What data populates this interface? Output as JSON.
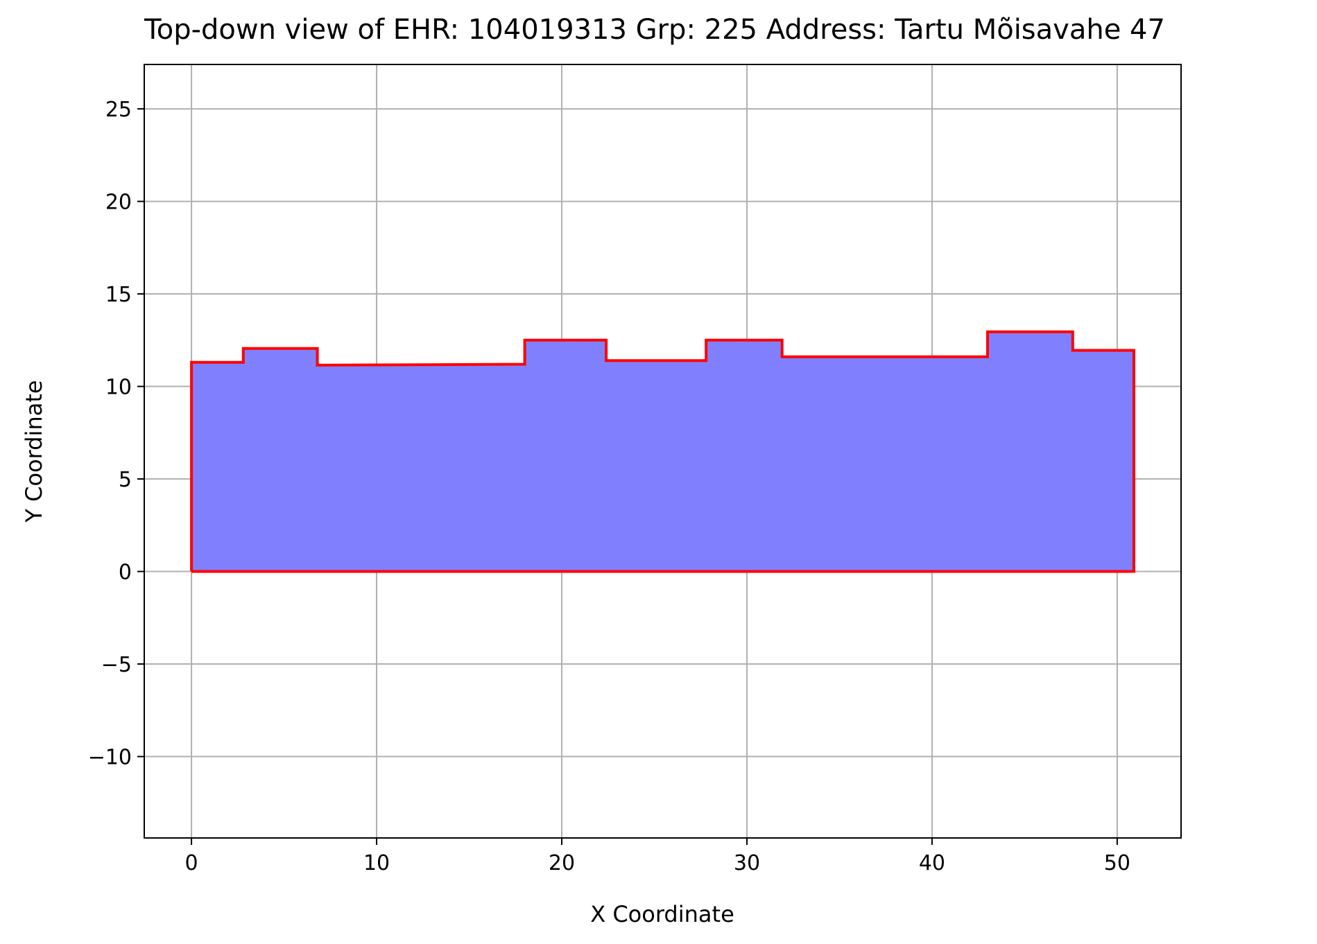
{
  "chart_data": {
    "type": "area",
    "title": "Top-down view of EHR: 104019313 Grp: 225 Address: Tartu Mõisavahe 47",
    "xlabel": "X Coordinate",
    "ylabel": "Y Coordinate",
    "xlim": [
      -2.55,
      53.45
    ],
    "ylim": [
      -14.4,
      27.4
    ],
    "xticks": [
      0,
      10,
      20,
      30,
      40,
      50
    ],
    "yticks": [
      -10,
      -5,
      0,
      5,
      10,
      15,
      20,
      25
    ],
    "xtick_labels": [
      "0",
      "10",
      "20",
      "30",
      "40",
      "50"
    ],
    "ytick_labels": [
      "−10",
      "−5",
      "0",
      "5",
      "10",
      "15",
      "20",
      "25"
    ],
    "grid": true,
    "legend": false,
    "series": [
      {
        "kind": "polygon",
        "fill_color": "#8080ff",
        "edge_color": "#ff0000",
        "points": [
          [
            0,
            0
          ],
          [
            0,
            11.3
          ],
          [
            2.8,
            11.3
          ],
          [
            2.8,
            12.05
          ],
          [
            6.8,
            12.05
          ],
          [
            6.8,
            11.15
          ],
          [
            18.0,
            11.2
          ],
          [
            18.0,
            12.5
          ],
          [
            22.4,
            12.5
          ],
          [
            22.4,
            11.4
          ],
          [
            27.8,
            11.4
          ],
          [
            27.8,
            12.5
          ],
          [
            31.9,
            12.5
          ],
          [
            31.9,
            11.6
          ],
          [
            43.0,
            11.6
          ],
          [
            43.0,
            12.95
          ],
          [
            47.6,
            12.95
          ],
          [
            47.6,
            11.95
          ],
          [
            50.9,
            11.95
          ],
          [
            50.9,
            0
          ],
          [
            0,
            0
          ]
        ]
      }
    ],
    "colors": {
      "fill": "#8080ff",
      "edge": "#ff0000",
      "grid": "#b0b0b0",
      "axes": "#000000"
    }
  }
}
